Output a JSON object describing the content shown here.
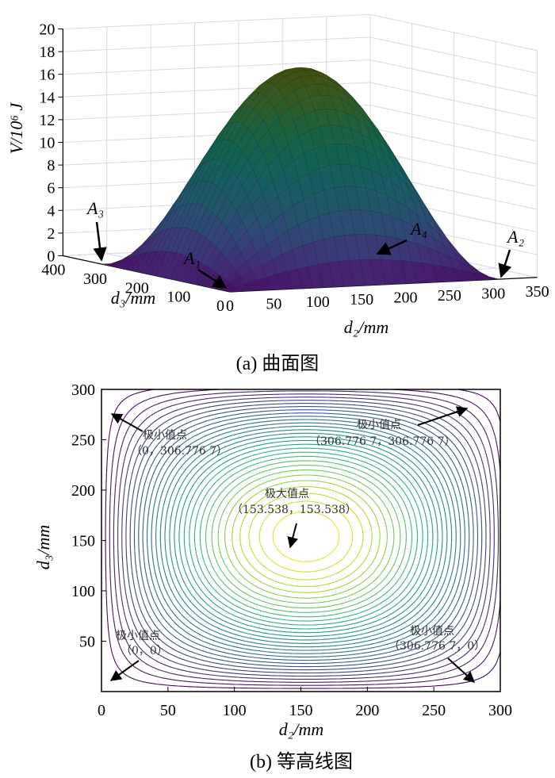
{
  "chart_data": [
    {
      "type": "surface",
      "zlabel": "V/10⁶ J",
      "xlabel": "d₂/mm",
      "ylabel": "d₃/mm",
      "x_ticks": [
        "0",
        "50",
        "100",
        "150",
        "200",
        "250",
        "300",
        "350"
      ],
      "y_ticks": [
        "400",
        "300",
        "200",
        "100",
        "0"
      ],
      "z_ticks": [
        "0",
        "2",
        "4",
        "6",
        "8",
        "10",
        "12",
        "14",
        "16",
        "18",
        "20"
      ],
      "xlim": [
        0,
        350
      ],
      "ylim": [
        0,
        400
      ],
      "zlim": [
        0,
        20
      ],
      "peak_z": 18,
      "point_labels": [
        "A₁",
        "A₂",
        "A₃",
        "A₄"
      ],
      "colormap": "viridis",
      "grid": true,
      "caption": "(a)  曲面图"
    },
    {
      "type": "contour",
      "xlabel": "d₂/mm",
      "ylabel": "d₃/mm",
      "x_ticks": [
        "0",
        "50",
        "100",
        "150",
        "200",
        "250",
        "300"
      ],
      "y_ticks": [
        "50",
        "100",
        "150",
        "200",
        "250",
        "300"
      ],
      "xlim": [
        0,
        300
      ],
      "ylim": [
        0,
        300
      ],
      "levels": 32,
      "colormap": "viridis",
      "annotations": [
        {
          "title": "极小值点",
          "coord": "（0，306.776 7）"
        },
        {
          "title": "极小值点",
          "coord": "（306.776 7，306.776 7）"
        },
        {
          "title": "极大值点",
          "coord": "（153.538，153.538）"
        },
        {
          "title": "极小值点",
          "coord": "（0，0）"
        },
        {
          "title": "极小值点",
          "coord": "（306.776 7，0）"
        }
      ],
      "caption": "(b)  等高线图"
    }
  ]
}
